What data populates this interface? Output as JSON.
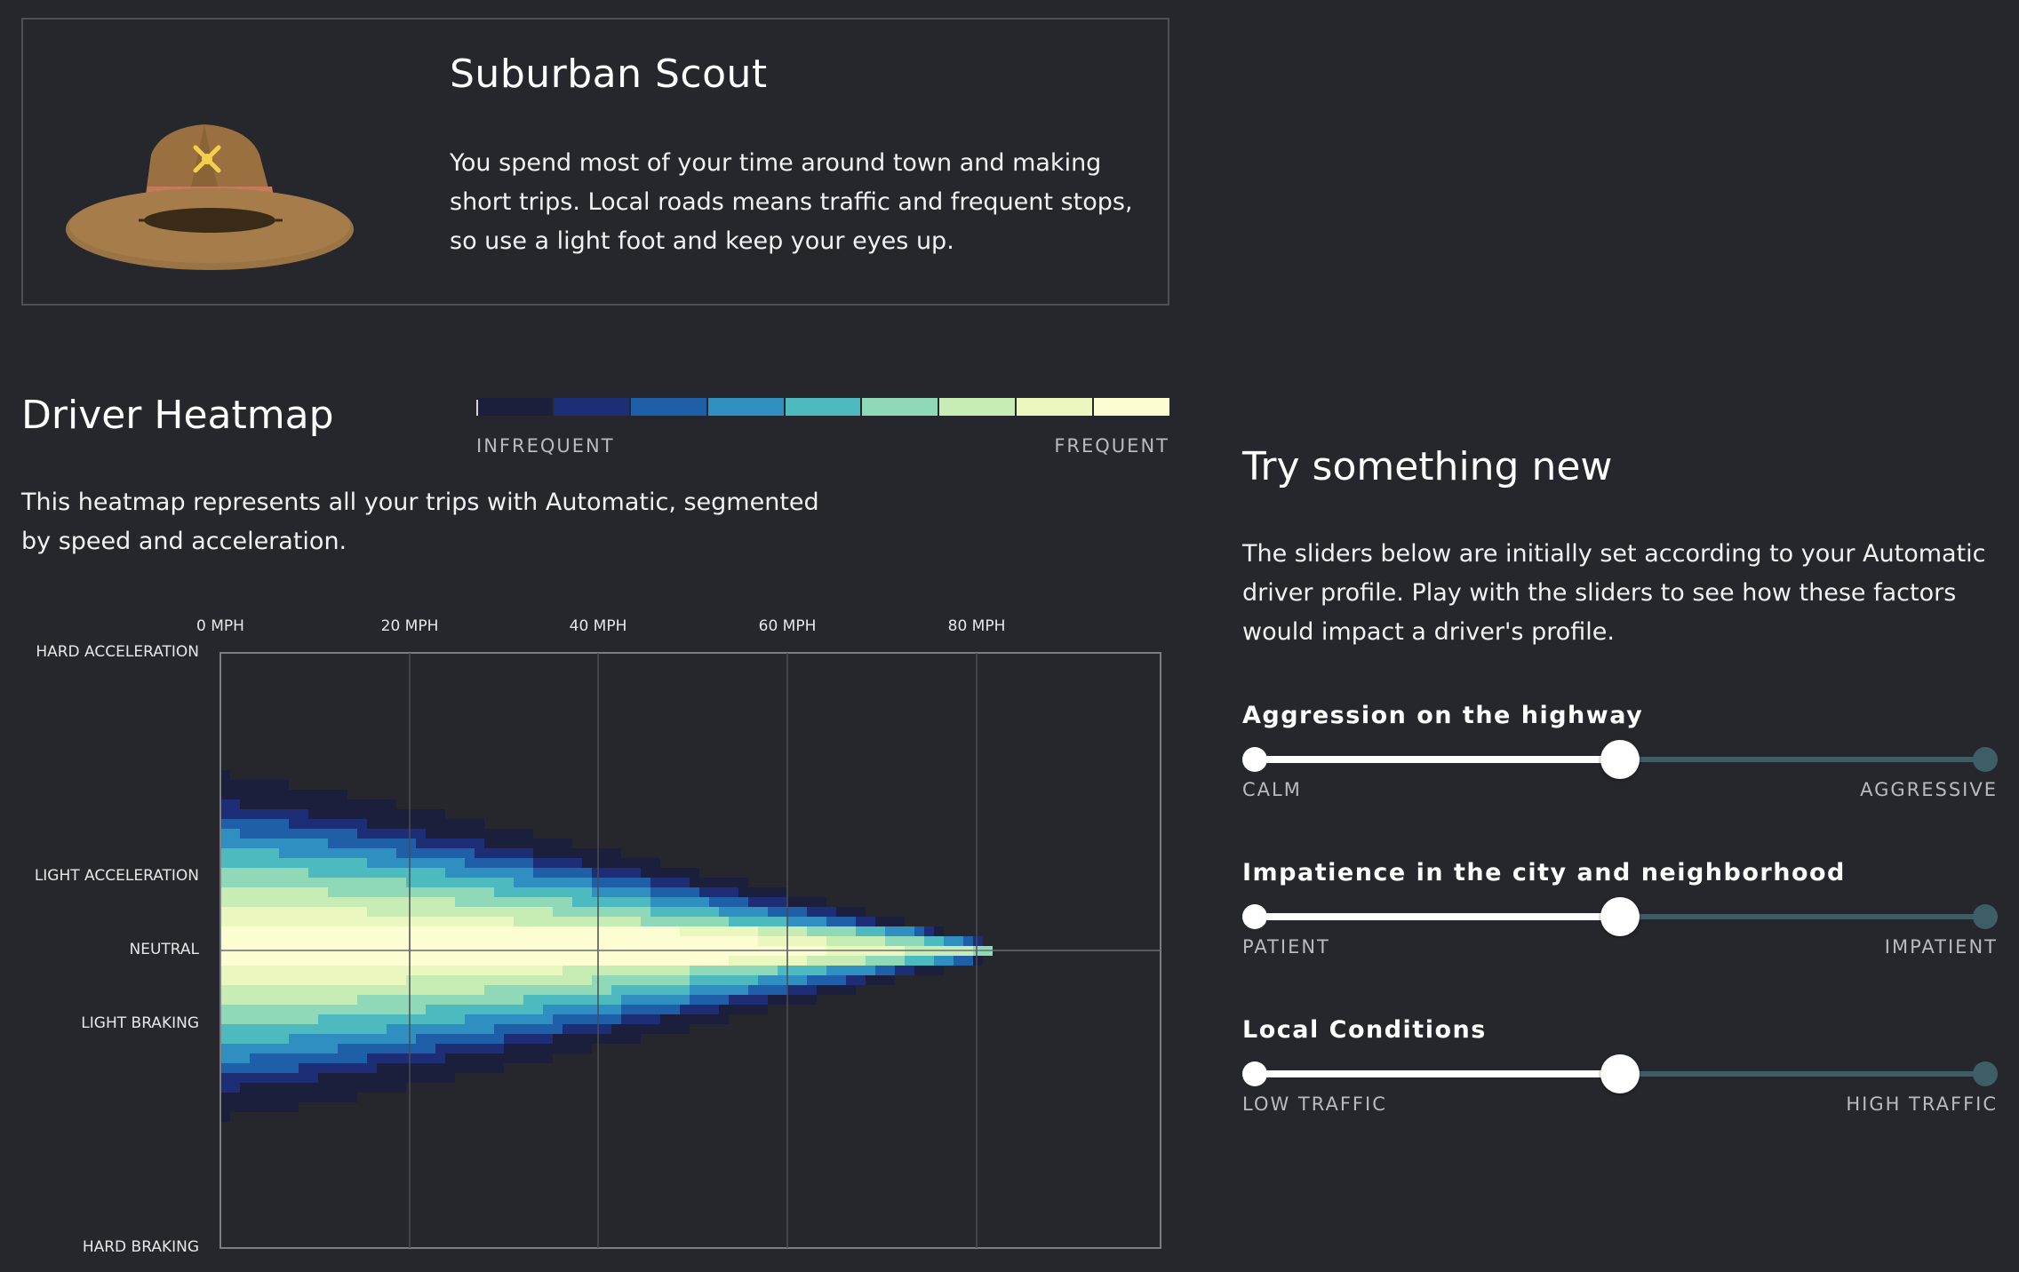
{
  "profile": {
    "title": "Suburban Scout",
    "description": "You spend most of your time around town and making short trips. Local roads means traffic and frequent stops, so use a light foot and keep your eyes up.",
    "icon": "scout-hat-icon"
  },
  "heatmap": {
    "title": "Driver Heatmap",
    "description": "This heatmap represents all your trips with Automatic, segmented by speed and acceleration.",
    "legend": {
      "left_label": "INFREQUENT",
      "right_label": "FREQUENT",
      "colors": [
        "#1b1f3c",
        "#1e2e76",
        "#1e5fa8",
        "#2e8fc0",
        "#4dbac0",
        "#8fd8b8",
        "#c7ecb4",
        "#eaf8c0",
        "#fdfdd2"
      ]
    }
  },
  "chart_data": {
    "type": "heatmap",
    "x_ticks": [
      "0 MPH",
      "20 MPH",
      "40 MPH",
      "60 MPH",
      "80 MPH"
    ],
    "y_labels": [
      "HARD ACCELERATION",
      "LIGHT ACCELERATION",
      "NEUTRAL",
      "LIGHT BRAKING",
      "HARD BRAKING"
    ],
    "x_range_mph": [
      0,
      100
    ],
    "y_range": [
      -1,
      1
    ],
    "grid": true,
    "distribution": {
      "center_acceleration": 0,
      "max_speed_mph": 80,
      "peak_region": "neutral acceleration, 0-70 mph",
      "spread_at_low_speed": "between light acceleration and light braking"
    }
  },
  "try_new": {
    "title": "Try something new",
    "description": "The sliders below are initially set according to your Automatic driver profile. Play with the sliders to see how these factors would impact a driver's profile.",
    "sliders": [
      {
        "label": "Aggression on the highway",
        "min_label": "CALM",
        "max_label": "AGGRESSIVE",
        "value": 0.5
      },
      {
        "label": "Impatience in the city and neighborhood",
        "min_label": "PATIENT",
        "max_label": "IMPATIENT",
        "value": 0.5
      },
      {
        "label": "Local Conditions",
        "min_label": "LOW TRAFFIC",
        "max_label": "HIGH TRAFFIC",
        "value": 0.5
      }
    ],
    "colors": {
      "track": "#3e5e66",
      "fill": "#ffffff"
    }
  }
}
